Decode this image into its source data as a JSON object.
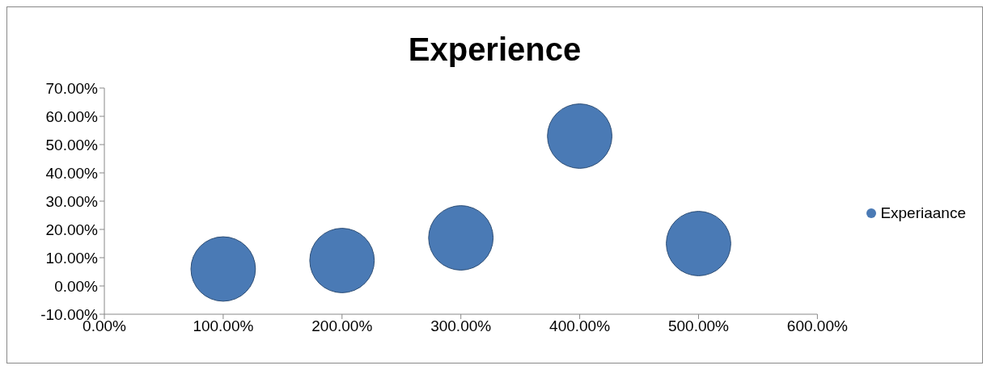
{
  "chart_data": {
    "type": "bubble",
    "title": "Experience",
    "x": [
      100,
      200,
      300,
      400,
      500
    ],
    "series": [
      {
        "name": "Experiaance",
        "color": "#4a7ab5",
        "values": [
          6,
          9,
          17,
          53,
          15
        ],
        "sizes": [
          1,
          1,
          1,
          1,
          1
        ]
      }
    ],
    "xlim": [
      0,
      600
    ],
    "xticks": [
      {
        "value": 0,
        "label": "0.00%"
      },
      {
        "value": 100,
        "label": "100.00%"
      },
      {
        "value": 200,
        "label": "200.00%"
      },
      {
        "value": 300,
        "label": "300.00%"
      },
      {
        "value": 400,
        "label": "400.00%"
      },
      {
        "value": 500,
        "label": "500.00%"
      },
      {
        "value": 600,
        "label": "600.00%"
      }
    ],
    "ylim": [
      -10,
      70
    ],
    "yticks": [
      {
        "value": -10,
        "label": "-10.00%"
      },
      {
        "value": 0,
        "label": "0.00%"
      },
      {
        "value": 10,
        "label": "10.00%"
      },
      {
        "value": 20,
        "label": "20.00%"
      },
      {
        "value": 30,
        "label": "30.00%"
      },
      {
        "value": 40,
        "label": "40.00%"
      },
      {
        "value": 50,
        "label": "50.00%"
      },
      {
        "value": 60,
        "label": "60.00%"
      },
      {
        "value": 70,
        "label": "70.00%"
      }
    ],
    "legend": "right",
    "grid": false
  }
}
